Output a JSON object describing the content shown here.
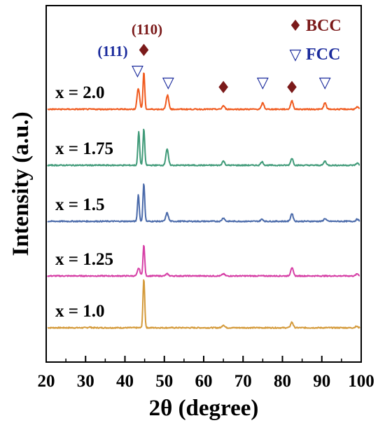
{
  "chart_data": {
    "type": "line",
    "xlabel": "2θ (degree)",
    "ylabel": "Intensity (a.u.)",
    "xlim": [
      20,
      100
    ],
    "x_ticks": [
      "20",
      "30",
      "40",
      "50",
      "60",
      "70",
      "80",
      "90",
      "100"
    ],
    "grid": false,
    "legend": [
      {
        "label": "BCC",
        "symbol": "♦",
        "color": "#7b1a1a"
      },
      {
        "label": "FCC",
        "symbol": "▽",
        "color": "#1a2a9c"
      }
    ],
    "annotations": [
      {
        "text": "(110)",
        "x": 44.8,
        "color": "#7b1a1a"
      },
      {
        "text": "(111)",
        "x": 43.5,
        "color": "#1a2a9c"
      }
    ],
    "markers": [
      {
        "phase": "BCC",
        "x": 44.8
      },
      {
        "phase": "FCC",
        "x": 43.2
      },
      {
        "phase": "FCC",
        "x": 51.0
      },
      {
        "phase": "BCC",
        "x": 65.0
      },
      {
        "phase": "FCC",
        "x": 75.0
      },
      {
        "phase": "BCC",
        "x": 82.4
      },
      {
        "phase": "FCC",
        "x": 90.8
      }
    ],
    "series": [
      {
        "name": "x = 1.0",
        "color": "#d49a3a",
        "offset": 0,
        "peaks": [
          [
            44.8,
            70
          ],
          [
            65.0,
            4
          ],
          [
            82.4,
            8
          ],
          [
            31.0,
            1
          ],
          [
            98.8,
            2
          ]
        ]
      },
      {
        "name": "x = 1.25",
        "color": "#d63fa6",
        "offset": 1,
        "peaks": [
          [
            43.5,
            11
          ],
          [
            44.8,
            44
          ],
          [
            50.7,
            3
          ],
          [
            65.0,
            3
          ],
          [
            82.4,
            12
          ],
          [
            99.0,
            3
          ]
        ]
      },
      {
        "name": "x = 1.5",
        "color": "#4a6aaa",
        "offset": 2,
        "peaks": [
          [
            43.4,
            38
          ],
          [
            44.8,
            54
          ],
          [
            50.7,
            12
          ],
          [
            65.0,
            5
          ],
          [
            74.8,
            3
          ],
          [
            82.4,
            11
          ],
          [
            90.8,
            4
          ],
          [
            99.0,
            3
          ]
        ]
      },
      {
        "name": "x = 1.75",
        "color": "#3f9a78",
        "offset": 3,
        "peaks": [
          [
            43.5,
            48
          ],
          [
            44.8,
            52
          ],
          [
            50.7,
            23
          ],
          [
            65.0,
            6
          ],
          [
            74.8,
            5
          ],
          [
            82.4,
            10
          ],
          [
            90.8,
            6
          ],
          [
            99.0,
            3
          ]
        ]
      },
      {
        "name": "x = 2.0",
        "color": "#f05a1e",
        "offset": 4,
        "peaks": [
          [
            43.4,
            30
          ],
          [
            44.8,
            53
          ],
          [
            50.8,
            20
          ],
          [
            65.0,
            5
          ],
          [
            75.0,
            9
          ],
          [
            82.4,
            12
          ],
          [
            90.8,
            9
          ],
          [
            99.0,
            3
          ]
        ]
      }
    ]
  }
}
